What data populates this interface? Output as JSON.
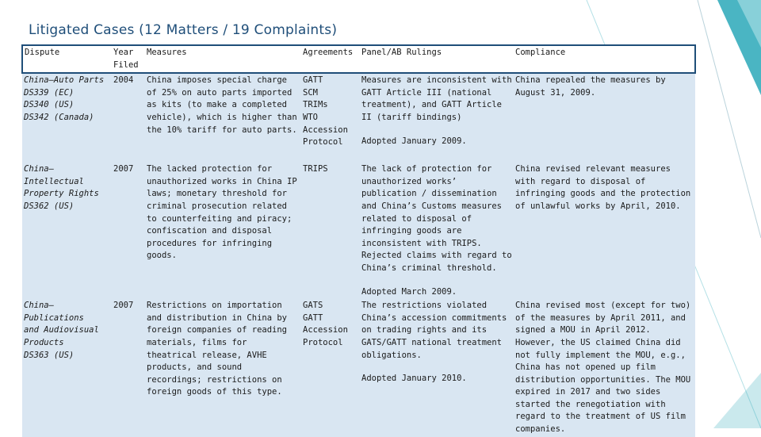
{
  "page": {
    "title": "Litigated Cases (12 Matters / 19 Complaints)"
  },
  "table": {
    "headers": [
      "Dispute",
      "Year\nFiled",
      "Measures",
      "Agreements",
      "Panel/AB Rulings",
      "Compliance"
    ],
    "rows": [
      {
        "dispute": "China–Auto Parts\nDS339 (EC)\nDS340 (US)\nDS342 (Canada)",
        "year": "2004",
        "measures": "China imposes special charge of 25% on auto parts imported as kits (to make a completed vehicle), which is higher than the 10% tariff for auto parts.",
        "agreements": "GATT\nSCM\nTRIMs\nWTO\nAccession\nProtocol",
        "rulings": "Measures are inconsistent with GATT Article III (national treatment), and GATT Article II (tariff bindings)",
        "adopted": "Adopted January 2009.",
        "compliance": "China repealed the measures by August 31, 2009."
      },
      {
        "dispute": "China–Intellectual\nProperty Rights\nDS362 (US)",
        "year": "2007",
        "measures": "The lacked protection for unauthorized works in China IP laws; monetary threshold for criminal prosecution related to counterfeiting and piracy; confiscation and disposal procedures for infringing goods.",
        "agreements": "TRIPS",
        "rulings": "The lack of protection for unauthorized works’ publication / dissemination and China’s Customs measures related to disposal of infringing goods are inconsistent with TRIPS. Rejected claims with regard to China’s criminal threshold.",
        "adopted": "Adopted March 2009.",
        "compliance": "China revised relevant measures with regard to disposal of infringing goods and the protection of unlawful works by April, 2010."
      },
      {
        "dispute": "China–Publications\nand Audiovisual\nProducts\nDS363 (US)",
        "year": "2007",
        "measures": "Restrictions on importation and distribution in China by foreign companies of reading materials, films for theatrical release, AVHE products, and sound recordings; restrictions on foreign goods of this type.",
        "agreements": "GATS\nGATT\nAccession\nProtocol",
        "rulings": "The restrictions violated China’s accession commitments on trading rights and its GATS/GATT national treatment obligations.",
        "adopted": "Adopted January 2010.",
        "compliance": "China revised most (except for two) of the measures by April 2011, and signed a MOU in April 2012. However, the US claimed China did not fully implement the MOU, e.g., China has not opened up film distribution opportunities. The MOU expired in 2017 and two sides started the renegotiation with regard to the treatment of US film companies."
      }
    ]
  },
  "colors": {
    "title": "#1f4e79",
    "header_border": "#1f4e79",
    "row_fill": "#d9e6f2",
    "accent_teal": "#2aa8b8",
    "accent_dark": "#1f6f8b"
  }
}
